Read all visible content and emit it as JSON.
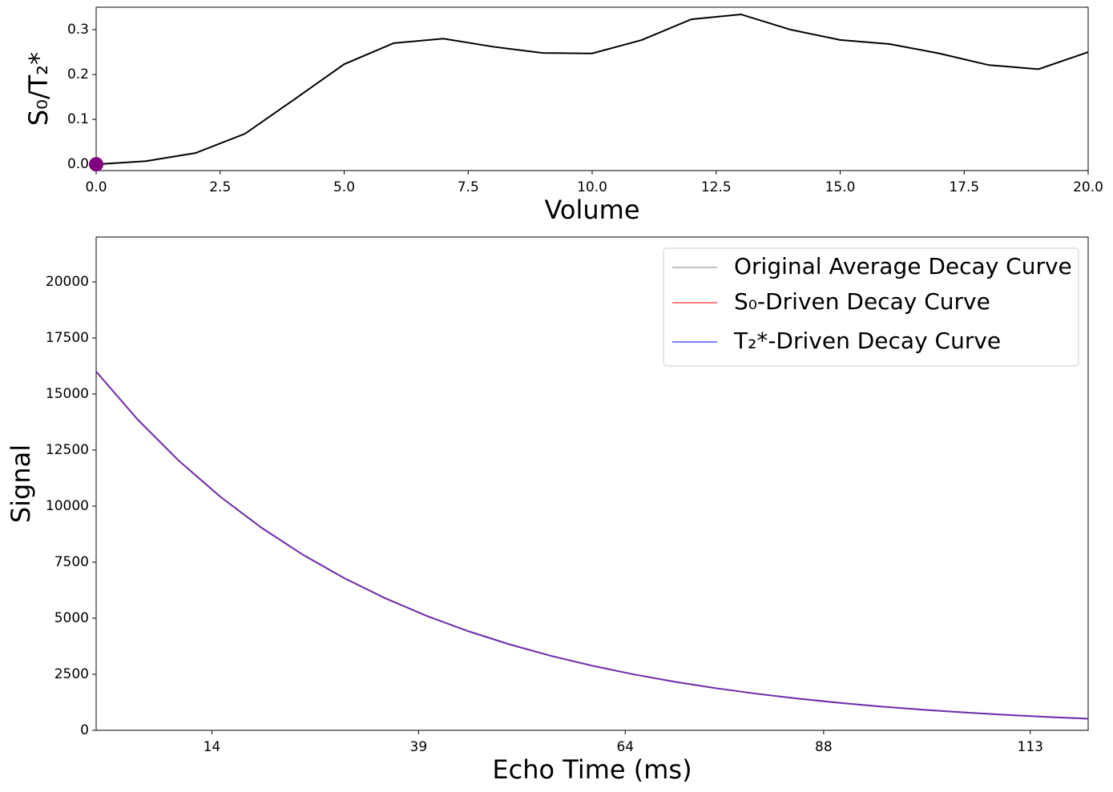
{
  "chart_data": [
    {
      "type": "line",
      "xlabel": "Volume",
      "ylabel": "S₀/T₂*",
      "x": [
        0,
        1,
        2,
        3,
        4,
        5,
        6,
        7,
        8,
        9,
        10,
        11,
        12,
        13,
        14,
        15,
        16,
        17,
        18,
        19,
        20
      ],
      "values": [
        0.0,
        0.007,
        0.025,
        0.068,
        0.145,
        0.223,
        0.27,
        0.28,
        0.262,
        0.248,
        0.247,
        0.277,
        0.323,
        0.334,
        0.3,
        0.277,
        0.268,
        0.247,
        0.221,
        0.212,
        0.25
      ],
      "color": "#000000",
      "marker": {
        "x": 0,
        "value": 0,
        "color": "#800080"
      },
      "xlim": [
        0,
        20
      ],
      "ylim": [
        -0.014,
        0.35
      ],
      "xticks": [
        {
          "value": 0,
          "label": "0.0"
        },
        {
          "value": 2.5,
          "label": "2.5"
        },
        {
          "value": 5,
          "label": "5.0"
        },
        {
          "value": 7.5,
          "label": "7.5"
        },
        {
          "value": 10,
          "label": "10.0"
        },
        {
          "value": 12.5,
          "label": "12.5"
        },
        {
          "value": 15,
          "label": "15.0"
        },
        {
          "value": 17.5,
          "label": "17.5"
        },
        {
          "value": 20,
          "label": "20.0"
        }
      ],
      "yticks": [
        {
          "value": 0,
          "label": "0.0"
        },
        {
          "value": 0.1,
          "label": "0.1"
        },
        {
          "value": 0.2,
          "label": "0.2"
        },
        {
          "value": 0.3,
          "label": "0.3"
        }
      ]
    },
    {
      "type": "line",
      "xlabel": "Echo Time (ms)",
      "ylabel": "Signal",
      "x": [
        0,
        5,
        10,
        15,
        20,
        25,
        30,
        35,
        40,
        45,
        50,
        55,
        60,
        65,
        70,
        75,
        80,
        85,
        90,
        95,
        100,
        105,
        110,
        115,
        120
      ],
      "series": [
        {
          "name": "Original Average Decay Curve",
          "color": "#808080",
          "values": [
            16000,
            13870,
            12024,
            10423,
            9035,
            7832,
            6790,
            5886,
            5102,
            4424,
            3835,
            3324,
            2882,
            2498,
            2165,
            1877,
            1627,
            1411,
            1223,
            1060,
            919,
            797,
            691,
            599,
            519
          ]
        },
        {
          "name": "S₀-Driven Decay Curve",
          "color": "#ff0000",
          "values": [
            16000,
            13870,
            12024,
            10423,
            9035,
            7832,
            6790,
            5886,
            5102,
            4424,
            3835,
            3324,
            2882,
            2498,
            2165,
            1877,
            1627,
            1411,
            1223,
            1060,
            919,
            797,
            691,
            599,
            519
          ]
        },
        {
          "name": "T₂*-Driven Decay Curve",
          "color": "#0000ff",
          "values": [
            16000,
            13870,
            12024,
            10423,
            9035,
            7832,
            6790,
            5886,
            5102,
            4424,
            3835,
            3324,
            2882,
            2498,
            2165,
            1877,
            1627,
            1411,
            1223,
            1060,
            919,
            797,
            691,
            599,
            519
          ]
        }
      ],
      "legend": "upper right",
      "xlim": [
        0,
        120
      ],
      "ylim": [
        0,
        22000
      ],
      "xticks": [
        14,
        39,
        64,
        88,
        113
      ],
      "yticks": [
        0,
        2500,
        5000,
        7500,
        10000,
        12500,
        15000,
        17500,
        20000
      ]
    }
  ]
}
